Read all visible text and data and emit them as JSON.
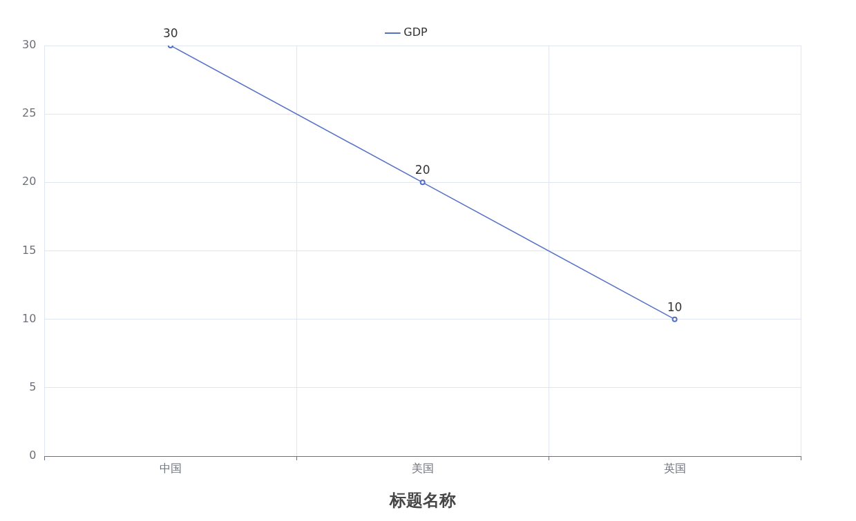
{
  "chart_data": {
    "type": "line",
    "xlabel": "标题名称",
    "categories": [
      "中国",
      "美国",
      "英国"
    ],
    "series": [
      {
        "name": "GDP",
        "color": "#5470c6",
        "values": [
          30,
          20,
          10
        ]
      }
    ],
    "ylim": [
      0,
      30
    ],
    "yticks": [
      0,
      5,
      10,
      15,
      20,
      25,
      30
    ],
    "grid": true,
    "legend": "top",
    "marker": "circle",
    "data_labels": true
  }
}
